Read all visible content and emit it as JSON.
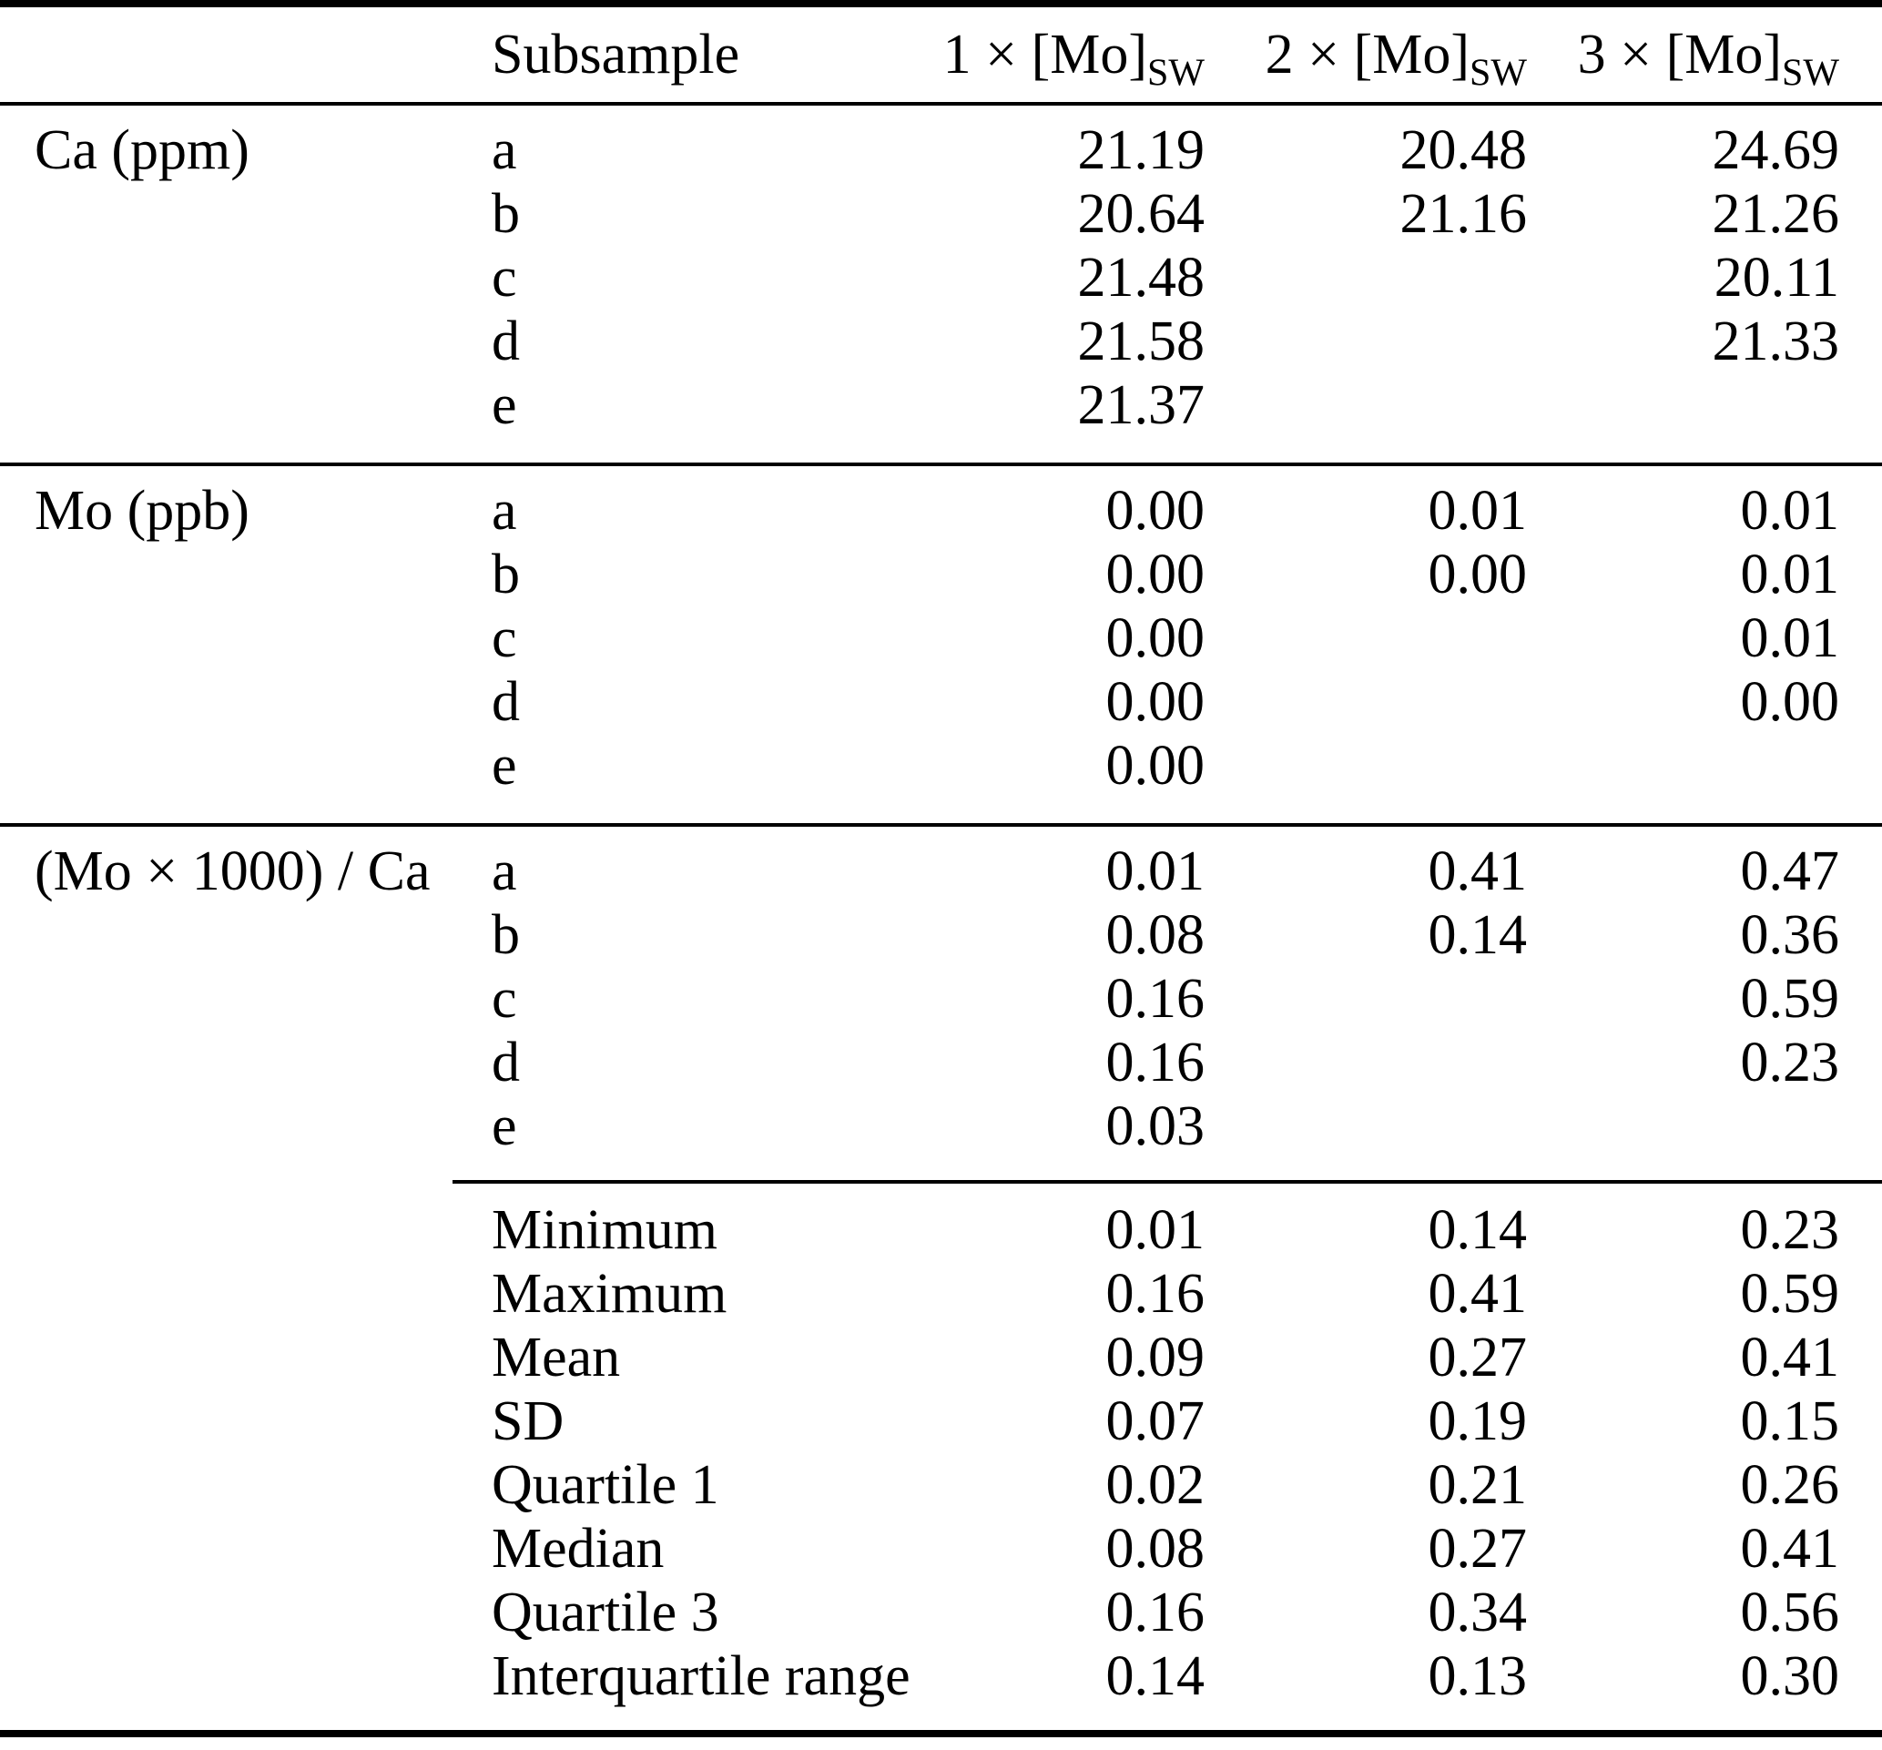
{
  "page": {
    "background_color": "#ffffff",
    "text_color": "#000000"
  },
  "table": {
    "header": {
      "group_col": "",
      "subsample": "Subsample",
      "cols": [
        {
          "base": "1 × [Mo]",
          "sub": "SW"
        },
        {
          "base": "2 × [Mo]",
          "sub": "SW"
        },
        {
          "base": "3 × [Mo]",
          "sub": "SW"
        }
      ]
    },
    "sections": [
      {
        "group_label": "Ca (ppm)",
        "rows": [
          {
            "label": "a",
            "values": [
              "21.19",
              "20.48",
              "24.69"
            ]
          },
          {
            "label": "b",
            "values": [
              "20.64",
              "21.16",
              "21.26"
            ]
          },
          {
            "label": "c",
            "values": [
              "21.48",
              "",
              "20.11"
            ]
          },
          {
            "label": "d",
            "values": [
              "21.58",
              "",
              "21.33"
            ]
          },
          {
            "label": "e",
            "values": [
              "21.37",
              "",
              ""
            ]
          }
        ]
      },
      {
        "group_label": "Mo (ppb)",
        "rows": [
          {
            "label": "a",
            "values": [
              "0.00",
              "0.01",
              "0.01"
            ]
          },
          {
            "label": "b",
            "values": [
              "0.00",
              "0.00",
              "0.01"
            ]
          },
          {
            "label": "c",
            "values": [
              "0.00",
              "",
              "0.01"
            ]
          },
          {
            "label": "d",
            "values": [
              "0.00",
              "",
              "0.00"
            ]
          },
          {
            "label": "e",
            "values": [
              "0.00",
              "",
              ""
            ]
          }
        ]
      },
      {
        "group_label": "(Mo × 1000) / Ca",
        "rows": [
          {
            "label": "a",
            "values": [
              "0.01",
              "0.41",
              "0.47"
            ]
          },
          {
            "label": "b",
            "values": [
              "0.08",
              "0.14",
              "0.36"
            ]
          },
          {
            "label": "c",
            "values": [
              "0.16",
              "",
              "0.59"
            ]
          },
          {
            "label": "d",
            "values": [
              "0.16",
              "",
              "0.23"
            ]
          },
          {
            "label": "e",
            "values": [
              "0.03",
              "",
              ""
            ]
          }
        ],
        "stats": [
          {
            "label": "Minimum",
            "values": [
              "0.01",
              "0.14",
              "0.23"
            ]
          },
          {
            "label": "Maximum",
            "values": [
              "0.16",
              "0.41",
              "0.59"
            ]
          },
          {
            "label": "Mean",
            "values": [
              "0.09",
              "0.27",
              "0.41"
            ]
          },
          {
            "label": "SD",
            "values": [
              "0.07",
              "0.19",
              "0.15"
            ]
          },
          {
            "label": "Quartile 1",
            "values": [
              "0.02",
              "0.21",
              "0.26"
            ]
          },
          {
            "label": "Median",
            "values": [
              "0.08",
              "0.27",
              "0.41"
            ]
          },
          {
            "label": "Quartile 3",
            "values": [
              "0.16",
              "0.34",
              "0.56"
            ]
          },
          {
            "label": "Interquartile range",
            "values": [
              "0.14",
              "0.13",
              "0.30"
            ]
          }
        ]
      }
    ]
  }
}
